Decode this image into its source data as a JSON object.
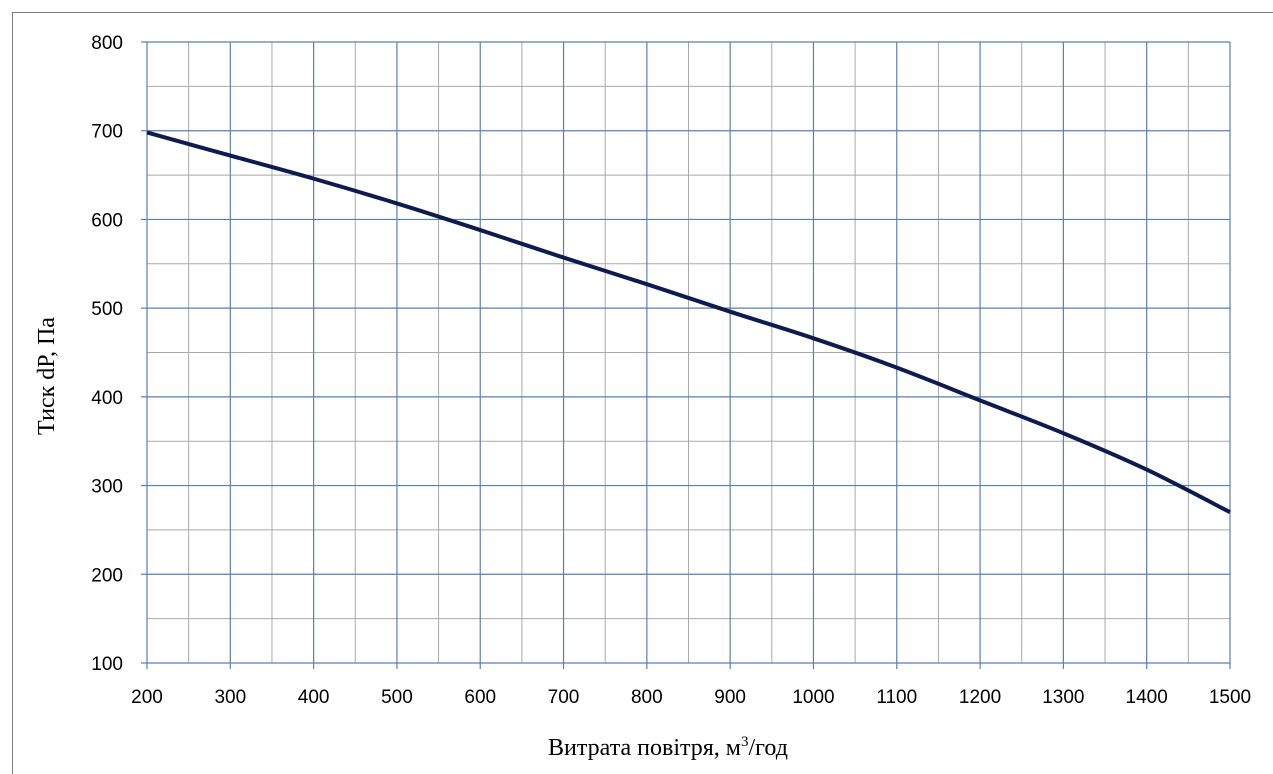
{
  "chart_data": {
    "type": "line",
    "title": "",
    "xlabel": "Витрата повітря, м",
    "xlabel_sup": "3",
    "xlabel_suffix": "/год",
    "ylabel": "Тиск dP, Па",
    "xlim": [
      200,
      1500
    ],
    "ylim": [
      100,
      800
    ],
    "xticks": [
      200,
      300,
      400,
      500,
      600,
      700,
      800,
      900,
      1000,
      1100,
      1200,
      1300,
      1400,
      1500
    ],
    "yticks": [
      100,
      200,
      300,
      400,
      500,
      600,
      700,
      800
    ],
    "grid": true,
    "minor_grid_step_x": 50,
    "minor_grid_step_y": 50,
    "colors": {
      "line": "#0d1b4f",
      "major_grid": "#5b7fb0",
      "minor_grid": "#a9a9a9",
      "frame": "#7f7f7f"
    },
    "series": [
      {
        "x": [
          200,
          300,
          400,
          500,
          600,
          700,
          800,
          900,
          1000,
          1100,
          1200,
          1300,
          1400,
          1500
        ],
        "y": [
          698,
          672,
          646,
          618,
          588,
          557,
          527,
          496,
          466,
          433,
          396,
          359,
          318,
          270
        ]
      }
    ]
  }
}
